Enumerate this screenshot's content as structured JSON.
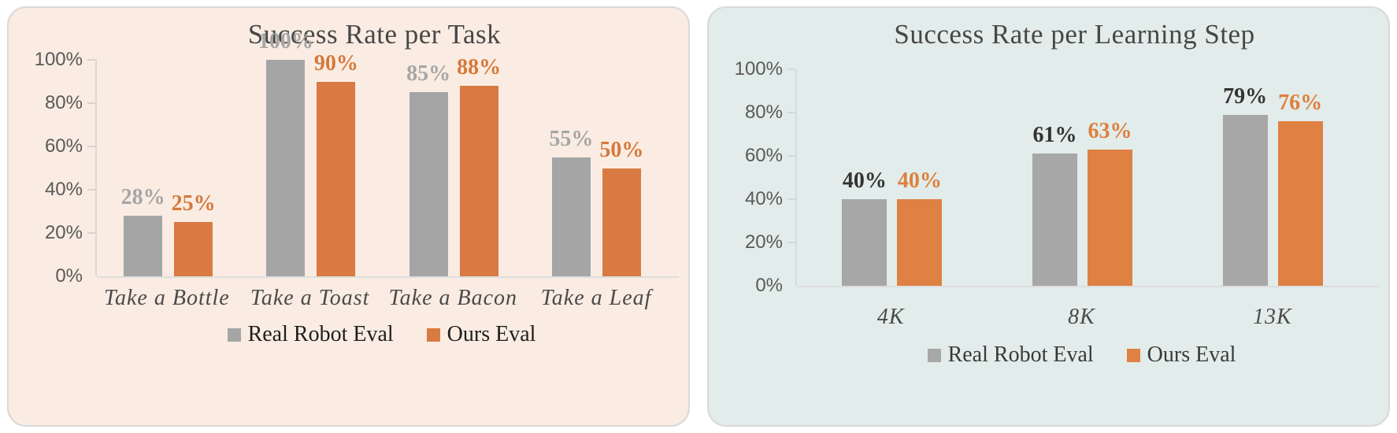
{
  "chart_data": [
    {
      "type": "bar",
      "title": "Success Rate per Task",
      "card_color": "#FAECE2",
      "categories": [
        "Take a Bottle",
        "Take a Toast",
        "Take a Bacon",
        "Take a Leaf"
      ],
      "series": [
        {
          "name": "Real Robot Eval",
          "color": "#A5A5A5",
          "label_color": "#A6A6A6",
          "values": [
            28,
            100,
            85,
            55
          ]
        },
        {
          "name": "Ours Eval",
          "color": "#D97A42",
          "label_color": "#D5793C",
          "values": [
            25,
            90,
            88,
            50
          ]
        }
      ],
      "value_suffix": "%",
      "y_ticks": [
        "0%",
        "20%",
        "40%",
        "60%",
        "80%",
        "100%"
      ],
      "ylim": [
        0,
        100
      ],
      "grid": false,
      "legend_position": "bottom",
      "xlabel": "",
      "ylabel": ""
    },
    {
      "type": "bar",
      "title": "Success Rate per Learning Step",
      "card_color": "#E2ECEA",
      "categories": [
        "4K",
        "8K",
        "13K"
      ],
      "series": [
        {
          "name": "Real Robot Eval",
          "color": "#A7A7A7",
          "label_color": "#333333",
          "values": [
            40,
            61,
            79
          ]
        },
        {
          "name": "Ours Eval",
          "color": "#DF8142",
          "label_color": "#DE7F3C",
          "values": [
            40,
            63,
            76
          ]
        }
      ],
      "value_suffix": "%",
      "y_ticks": [
        "0%",
        "20%",
        "40%",
        "60%",
        "80%",
        "100%"
      ],
      "ylim": [
        0,
        100
      ],
      "grid": false,
      "legend_position": "bottom",
      "xlabel": "",
      "ylabel": ""
    }
  ]
}
